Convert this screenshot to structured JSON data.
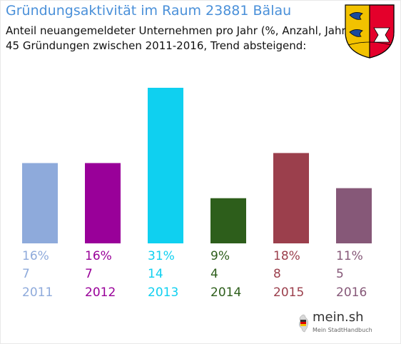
{
  "header": {
    "title": "Gründungsaktivität im Raum 23881 Bälau",
    "subtitle_line1": "Anteil neuangemeldeter Unternehmen pro Jahr (%, Anzahl, Jahr)",
    "subtitle_line2": "45 Gründungen zwischen 2011-2016, Trend absteigend:"
  },
  "branding": {
    "logo_name": "mein.sh",
    "logo_tagline": "Mein StadtHandbuch",
    "crest_icon": "schleswig-holstein-coat-of-arms-icon"
  },
  "colors": {
    "title": "#4a90d9"
  },
  "chart_data": {
    "type": "bar",
    "title": "",
    "xlabel": "",
    "ylabel": "",
    "grid": false,
    "ylim": [
      0,
      31
    ],
    "categories": [
      "2011",
      "2012",
      "2013",
      "2014",
      "2015",
      "2016"
    ],
    "values": [
      16,
      16,
      31,
      9,
      18,
      11
    ],
    "percent_labels": [
      "16%",
      "16%",
      "31%",
      "9%",
      "18%",
      "11%"
    ],
    "counts": [
      "7",
      "7",
      "14",
      "4",
      "8",
      "5"
    ],
    "colors": [
      "#8eaadb",
      "#990099",
      "#0fd0f0",
      "#2d5e1b",
      "#9b3f4c",
      "#865878"
    ]
  }
}
